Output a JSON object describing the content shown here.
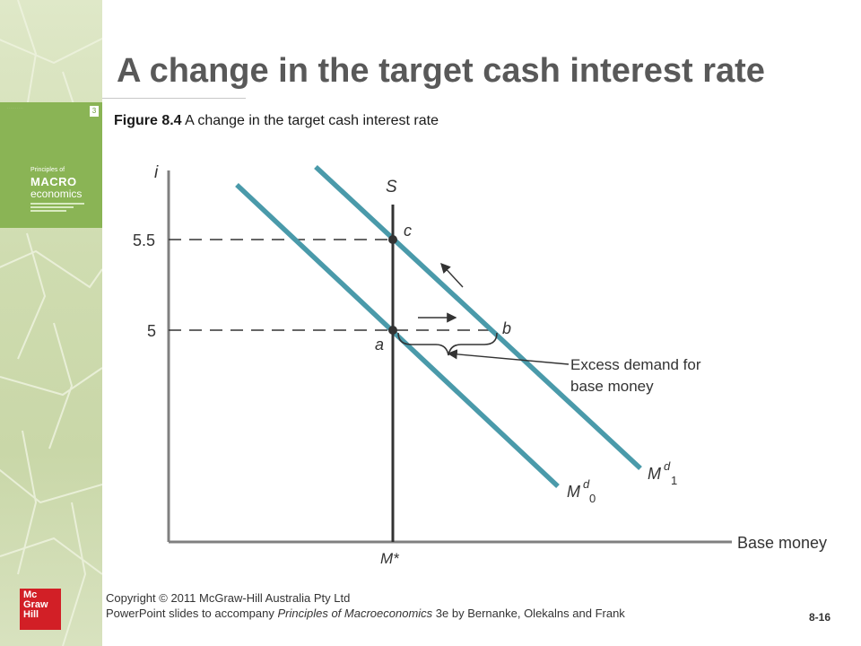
{
  "slide": {
    "title": "A change in the target cash interest rate",
    "caption_label": "Figure 8.4",
    "caption_text": "A change in the target cash interest rate",
    "slide_number": "8-16"
  },
  "book_cover": {
    "badge": "3",
    "line1": "Principles of",
    "line2": "MACRO",
    "line3": "economics"
  },
  "footer": {
    "line1": "Copyright © 2011 McGraw-Hill Australia Pty Ltd",
    "line2_prefix": "PowerPoint slides to accompany ",
    "line2_italic": "Principles of Macroeconomics",
    "line2_suffix": " 3e by  Bernanke, Olekalns and Frank"
  },
  "logo": {
    "lines": [
      "Mc",
      "Graw",
      "Hill"
    ]
  },
  "diagram": {
    "y_axis_label": "i",
    "x_axis_label": "Base money",
    "supply_label": "S",
    "supply_quantity_label": "M*",
    "tick_high": "5.5",
    "tick_low": "5",
    "point_c": "c",
    "point_a": "a",
    "point_b": "b",
    "md0_base": "M",
    "md0_sup": "d",
    "md0_sub": "0",
    "md1_base": "M",
    "md1_sup": "d",
    "md1_sub": "1",
    "annotation_line1": "Excess demand for",
    "annotation_line2": "base money",
    "curve_color": "#4a9aaa",
    "axis_color": "#808080"
  }
}
